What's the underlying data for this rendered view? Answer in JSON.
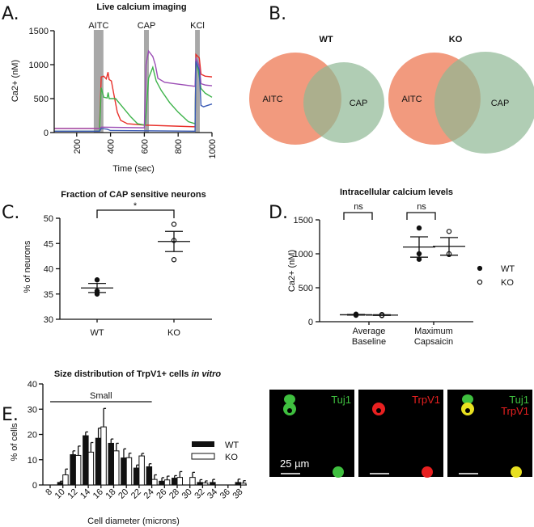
{
  "panel_labels": {
    "a": "A.",
    "b": "B.",
    "c": "C.",
    "d": "D.",
    "e": "E."
  },
  "chart_data": [
    {
      "id": "A",
      "type": "line",
      "title": "Live calcium imaging",
      "xlabel": "Time (sec)",
      "ylabel": "Ca2+ (nM)",
      "xlim": [
        70,
        1000
      ],
      "ylim": [
        0,
        1500
      ],
      "xticks": [
        "200",
        "400",
        "600",
        "800",
        "1000"
      ],
      "xtick_values": [
        200,
        400,
        600,
        800,
        1000
      ],
      "yticks": [
        "0",
        "500",
        "1000",
        "1500"
      ],
      "ytick_values": [
        0,
        500,
        1000,
        1500
      ],
      "stimuli": [
        {
          "label": "AITC",
          "start": 301,
          "end": 358
        },
        {
          "label": "CAP",
          "start": 598,
          "end": 627
        },
        {
          "label": "KCl",
          "start": 900,
          "end": 928
        }
      ],
      "series": [
        {
          "name": "red",
          "color": "#e8302a",
          "points": [
            [
              70,
              60
            ],
            [
              335,
              60
            ],
            [
              345,
              820
            ],
            [
              360,
              830
            ],
            [
              375,
              790
            ],
            [
              385,
              890
            ],
            [
              392,
              780
            ],
            [
              405,
              760
            ],
            [
              420,
              560
            ],
            [
              440,
              300
            ],
            [
              460,
              180
            ],
            [
              500,
              130
            ],
            [
              600,
              110
            ],
            [
              900,
              85
            ],
            [
              905,
              1150
            ],
            [
              925,
              1100
            ],
            [
              935,
              860
            ],
            [
              960,
              830
            ],
            [
              1000,
              820
            ]
          ]
        },
        {
          "name": "green",
          "color": "#3db34a",
          "points": [
            [
              70,
              20
            ],
            [
              335,
              20
            ],
            [
              345,
              660
            ],
            [
              360,
              520
            ],
            [
              380,
              510
            ],
            [
              386,
              590
            ],
            [
              392,
              500
            ],
            [
              430,
              500
            ],
            [
              470,
              380
            ],
            [
              520,
              230
            ],
            [
              560,
              130
            ],
            [
              605,
              110
            ],
            [
              625,
              800
            ],
            [
              650,
              960
            ],
            [
              670,
              760
            ],
            [
              700,
              620
            ],
            [
              750,
              440
            ],
            [
              800,
              300
            ],
            [
              860,
              160
            ],
            [
              900,
              130
            ],
            [
              905,
              1050
            ],
            [
              920,
              900
            ],
            [
              935,
              650
            ],
            [
              960,
              580
            ],
            [
              1000,
              520
            ]
          ]
        },
        {
          "name": "purple",
          "color": "#9b4db5",
          "points": [
            [
              70,
              60
            ],
            [
              340,
              60
            ],
            [
              345,
              80
            ],
            [
              600,
              70
            ],
            [
              610,
              1000
            ],
            [
              625,
              1200
            ],
            [
              650,
              1120
            ],
            [
              665,
              1000
            ],
            [
              680,
              800
            ],
            [
              720,
              740
            ],
            [
              780,
              720
            ],
            [
              840,
              700
            ],
            [
              900,
              680
            ],
            [
              905,
              1100
            ],
            [
              925,
              980
            ],
            [
              935,
              720
            ],
            [
              960,
              700
            ],
            [
              1000,
              690
            ]
          ]
        },
        {
          "name": "blue",
          "color": "#3b5bb5",
          "points": [
            [
              70,
              20
            ],
            [
              335,
              20
            ],
            [
              345,
              60
            ],
            [
              380,
              50
            ],
            [
              400,
              30
            ],
            [
              900,
              20
            ],
            [
              905,
              1050
            ],
            [
              925,
              920
            ],
            [
              935,
              400
            ],
            [
              950,
              380
            ],
            [
              1000,
              420
            ]
          ]
        }
      ]
    },
    {
      "id": "B",
      "type": "venn",
      "diagrams": [
        {
          "title": "WT",
          "sets": [
            "AITC",
            "CAP"
          ]
        },
        {
          "title": "KO",
          "sets": [
            "AITC",
            "CAP"
          ]
        }
      ],
      "colors": {
        "aitc": "#f29a7e",
        "cap": "#8fb894"
      }
    },
    {
      "id": "C",
      "type": "scatter",
      "title": "Fraction of CAP sensitive neurons",
      "ylabel": "% of neurons",
      "ylim": [
        30,
        50
      ],
      "yticks": [
        "30",
        "35",
        "40",
        "45",
        "50"
      ],
      "ytick_values": [
        30,
        35,
        40,
        45,
        50
      ],
      "categories": [
        "WT",
        "KO"
      ],
      "groups": [
        {
          "name": "WT",
          "points": [
            37.8,
            35.0,
            35.6
          ],
          "mean": 36.2,
          "sem": 0.9,
          "filled": true
        },
        {
          "name": "KO",
          "points": [
            48.8,
            45.6,
            41.8
          ],
          "mean": 45.4,
          "sem": 2.0,
          "filled": false
        }
      ],
      "significance": "*"
    },
    {
      "id": "D",
      "type": "scatter",
      "title": "Intracellular calcium levels",
      "ylabel": "Ca2+ (nM)",
      "ylim": [
        0,
        1500
      ],
      "yticks": [
        "0",
        "500",
        "1000",
        "1500"
      ],
      "ytick_values": [
        0,
        500,
        1000,
        1500
      ],
      "categories": [
        [
          "Average",
          "Baseline"
        ],
        [
          "Maximum",
          "Capsaicin"
        ]
      ],
      "groups": [
        {
          "category": 0,
          "name": "WT",
          "points": [
            110,
            95,
            100
          ],
          "mean": 102,
          "sem": 5,
          "filled": true
        },
        {
          "category": 0,
          "name": "KO",
          "points": [
            90,
            105,
            95
          ],
          "mean": 97,
          "sem": 5,
          "filled": false
        },
        {
          "category": 1,
          "name": "WT",
          "points": [
            1380,
            1000,
            920
          ],
          "mean": 1100,
          "sem": 150,
          "filled": true
        },
        {
          "category": 1,
          "name": "KO",
          "points": [
            1330,
            990,
            1000
          ],
          "mean": 1110,
          "sem": 130,
          "filled": false
        }
      ],
      "significance": [
        "ns",
        "ns"
      ],
      "legend": [
        "WT",
        "KO"
      ]
    },
    {
      "id": "E",
      "type": "bar",
      "title": "Size distribution of TrpV1+ cells",
      "title_italic": "in vitro",
      "xlabel": "Cell diameter (microns)",
      "ylabel": "% of cells",
      "ylim": [
        0,
        40
      ],
      "yticks": [
        "0",
        "10",
        "20",
        "30",
        "40"
      ],
      "ytick_values": [
        0,
        10,
        20,
        30,
        40
      ],
      "categories": [
        "8",
        "10",
        "12",
        "14",
        "16",
        "18",
        "20",
        "22",
        "24",
        "26",
        "28",
        "30",
        "32",
        "34",
        "36",
        "38"
      ],
      "annotation": "Small",
      "series": [
        {
          "name": "WT",
          "values": [
            0,
            1,
            12,
            19.5,
            18.5,
            16.5,
            10.7,
            6.7,
            7.2,
            1.5,
            2.7,
            0,
            1,
            1,
            0,
            1
          ],
          "err": [
            0,
            0.5,
            1.5,
            1.5,
            4,
            1.7,
            3.6,
            1.2,
            1.2,
            1.4,
            1,
            0,
            1.1,
            1.2,
            0,
            1.3
          ]
        },
        {
          "name": "KO",
          "values": [
            0,
            4,
            11.7,
            13,
            23,
            13.5,
            10.8,
            11.5,
            2.2,
            2,
            3,
            3,
            0.8,
            0,
            0,
            0.7
          ],
          "err": [
            0,
            2.3,
            3.7,
            3.8,
            7.3,
            3,
            1.8,
            1,
            1.8,
            1.5,
            2.3,
            2,
            0.8,
            0,
            0,
            1
          ]
        }
      ]
    }
  ],
  "micrographs": {
    "panels": [
      {
        "labels": [
          "Tuj1"
        ],
        "colors": [
          "#3fbf3f"
        ]
      },
      {
        "labels": [
          "TrpV1"
        ],
        "colors": [
          "#e82020"
        ]
      },
      {
        "labels": [
          "Tuj1",
          "TrpV1"
        ],
        "colors": [
          "#3fbf3f",
          "#e82020"
        ]
      }
    ],
    "scale_bar": "25 µm"
  }
}
